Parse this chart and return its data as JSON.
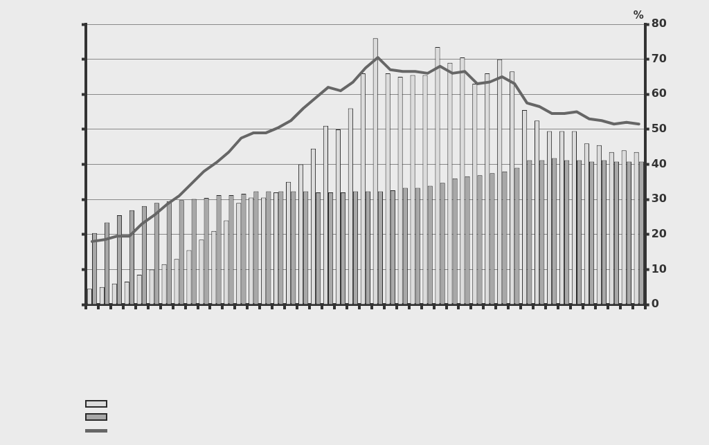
{
  "chart_data": {
    "type": "bar",
    "ylabel": "%",
    "categories": [
      null,
      null,
      null,
      null,
      null,
      null,
      null,
      null,
      null,
      null,
      null,
      null,
      null,
      null,
      null,
      null,
      null,
      null,
      null,
      null,
      null,
      null,
      null,
      null,
      null,
      null,
      null,
      null,
      null,
      null,
      null,
      null,
      null,
      null,
      null,
      null,
      null,
      null,
      null,
      null,
      null,
      null,
      null,
      null,
      null
    ],
    "series": [
      {
        "color": "#dcdcdc",
        "values": [
          4.5,
          5,
          6,
          6.5,
          8.5,
          10,
          11.5,
          13,
          15.5,
          18.5,
          21,
          24,
          29,
          30.5,
          30.5,
          32,
          35,
          40,
          44.5,
          51,
          50,
          56,
          66,
          76,
          66,
          65,
          65.5,
          65.5,
          73.5,
          69,
          70.5,
          63,
          66,
          70,
          66.5,
          55.5,
          52.5,
          49.5,
          49.5,
          49.5,
          46,
          45.5,
          43.5,
          44,
          43.5
        ]
      },
      {
        "color": "#a8a8a8",
        "values": [
          20.4,
          23.4,
          25.5,
          26.9,
          28.1,
          29,
          29.5,
          29.8,
          30.1,
          30.4,
          31.2,
          31.2,
          31.6,
          32.3,
          32.3,
          32.3,
          32.3,
          32.3,
          32,
          32,
          32,
          32.3,
          32.3,
          32.3,
          32.6,
          33.3,
          33.3,
          33.9,
          34.7,
          36,
          36.6,
          36.9,
          37.5,
          38,
          39,
          41.2,
          41.2,
          41.8,
          41.2,
          41.2,
          40.8,
          41.2,
          40.8,
          40.8,
          40.8
        ]
      },
      {
        "type": "line",
        "color": "#666666",
        "values": [
          18,
          18.5,
          19.5,
          19.5,
          23,
          25.5,
          28.5,
          31,
          34.5,
          38,
          40.5,
          43.5,
          47.5,
          49,
          49,
          50.5,
          52.5,
          56,
          59,
          62,
          61,
          63.5,
          67.5,
          70.5,
          67,
          66.5,
          66.5,
          66,
          68,
          66,
          66.5,
          63,
          63.5,
          65,
          63,
          57.5,
          56.5,
          54.5,
          54.5,
          55,
          53,
          52.5,
          51.5,
          52,
          51.5
        ]
      }
    ],
    "ylim": [
      0,
      80
    ],
    "yticks": [
      0,
      10,
      20,
      30,
      40,
      50,
      60,
      70,
      80
    ],
    "grid": "y",
    "marker": "none",
    "line_style": "solid",
    "tick_labels": "y"
  }
}
